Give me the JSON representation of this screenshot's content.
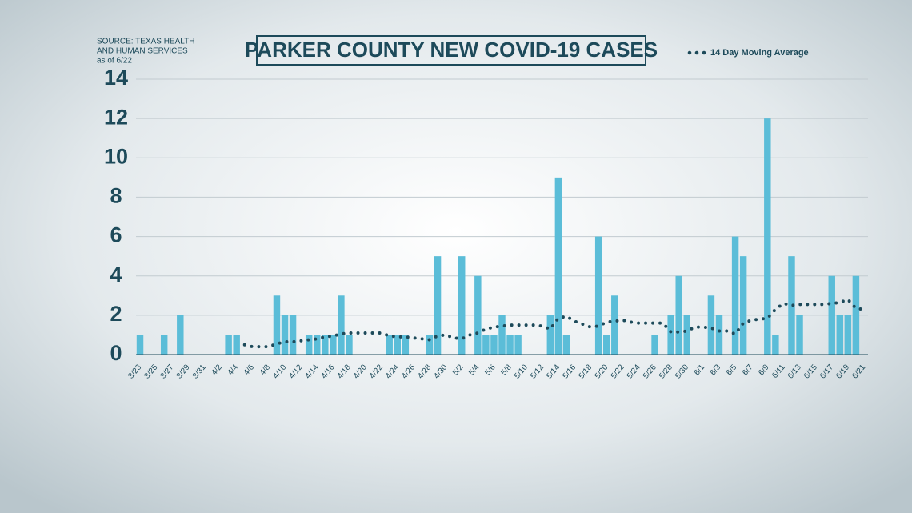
{
  "chart_data": {
    "type": "bar",
    "title": "PARKER COUNTY NEW COVID-19 CASES",
    "source": [
      "SOURCE:  TEXAS HEALTH",
      "AND HUMAN SERVICES",
      "as of 6/22"
    ],
    "categories": [
      "3/23",
      null,
      "3/25",
      null,
      "3/27",
      null,
      "3/29",
      null,
      "3/31",
      null,
      "4/2",
      null,
      "4/4",
      null,
      "4/6",
      null,
      "4/8",
      null,
      "4/10",
      null,
      "4/12",
      null,
      "4/14",
      null,
      "4/16",
      null,
      "4/18",
      null,
      "4/20",
      null,
      "4/22",
      null,
      "4/24",
      null,
      "4/26",
      null,
      "4/28",
      null,
      "4/30",
      null,
      "5/2",
      null,
      "5/4",
      null,
      "5/6",
      null,
      "5/8",
      null,
      "5/10",
      null,
      "5/12",
      null,
      "5/14",
      null,
      "5/16",
      null,
      "5/18",
      null,
      "5/20",
      null,
      "5/22",
      null,
      "5/24",
      null,
      "5/26",
      null,
      "5/28",
      null,
      "5/30",
      null,
      "6/1",
      null,
      "6/3",
      null,
      "6/5",
      null,
      "6/7",
      null,
      "6/9",
      null,
      "6/11",
      null,
      "6/13",
      null,
      "6/15",
      null,
      "6/17",
      null,
      "6/19",
      null,
      "6/21"
    ],
    "series": [
      {
        "color": "#5bbdd8",
        "values": [
          1,
          0,
          0,
          1,
          0,
          2,
          0,
          0,
          0,
          0,
          0,
          1,
          1,
          0,
          0,
          0,
          0,
          3,
          2,
          2,
          0,
          1,
          1,
          1,
          1,
          3,
          1,
          0,
          0,
          0,
          0,
          1,
          1,
          1,
          0,
          0,
          1,
          5,
          0,
          0,
          5,
          0,
          4,
          1,
          1,
          2,
          1,
          1,
          0,
          0,
          0,
          2,
          9,
          1,
          0,
          0,
          0,
          6,
          1,
          3,
          0,
          0,
          0,
          0,
          1,
          0,
          2,
          4,
          2,
          0,
          0,
          3,
          2,
          0,
          6,
          5,
          0,
          0,
          12,
          1,
          0,
          5,
          2,
          0,
          0,
          0,
          4,
          2,
          2,
          4,
          0
        ]
      },
      {
        "name": "14 Day Moving Average",
        "color": "#1d4a5a",
        "values": [
          null,
          null,
          null,
          null,
          null,
          null,
          null,
          null,
          null,
          null,
          null,
          null,
          null,
          0.5,
          0.4,
          0.4,
          0.4,
          0.55,
          0.65,
          0.65,
          0.7,
          0.75,
          0.8,
          0.9,
          0.95,
          1.05,
          1.1,
          1.1,
          1.1,
          1.1,
          1.1,
          0.95,
          0.9,
          0.9,
          0.85,
          0.8,
          0.75,
          0.95,
          1.0,
          0.85,
          0.8,
          1.0,
          1.1,
          1.3,
          1.4,
          1.45,
          1.5,
          1.5,
          1.5,
          1.5,
          1.45,
          1.3,
          1.85,
          1.95,
          1.7,
          1.55,
          1.4,
          1.45,
          1.65,
          1.7,
          1.75,
          1.65,
          1.6,
          1.6,
          1.6,
          1.6,
          1.15,
          1.15,
          1.2,
          1.4,
          1.4,
          1.35,
          1.2,
          1.2,
          1.05,
          1.6,
          1.75,
          1.8,
          1.85,
          2.3,
          2.6,
          2.5,
          2.55,
          2.55,
          2.55,
          2.55,
          2.6,
          2.65,
          2.8,
          2.35,
          2.3
        ]
      }
    ],
    "ylim": [
      0,
      14
    ],
    "yticks": [
      0,
      2,
      4,
      6,
      8,
      10,
      12,
      14
    ],
    "grid": true
  }
}
